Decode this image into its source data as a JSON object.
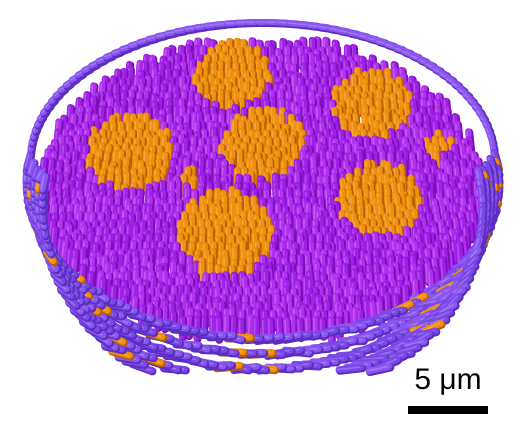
{
  "image": {
    "scale_bar_label": "5 μm"
  },
  "colors": {
    "background": "#ffffff",
    "rod_vertical": "#a020e8",
    "rod_vertical_shade": "#7a10b8",
    "rod_peripheral": "#8a55f0",
    "rod_peripheral_shade": "#5a2fc0",
    "rod_orange": "#f0900c",
    "rod_orange_shade": "#b86000",
    "scale_bar": "#000000"
  }
}
